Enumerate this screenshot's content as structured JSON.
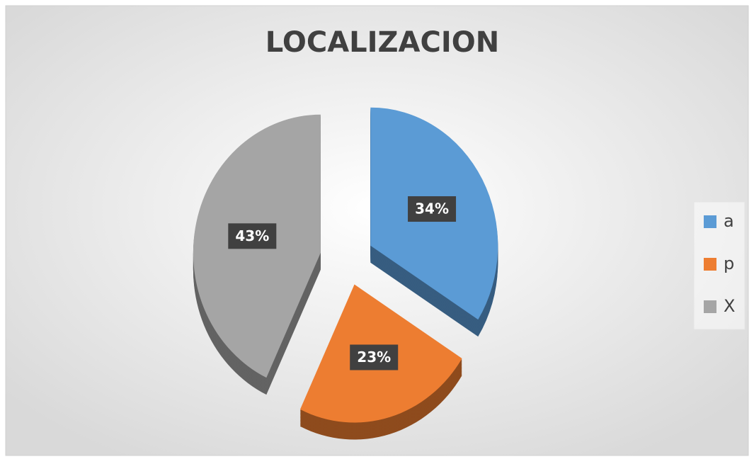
{
  "chart_data": {
    "type": "pie",
    "title": "LOCALIZACION",
    "categories": [
      "a",
      "p",
      "X"
    ],
    "values": [
      34,
      23,
      43
    ],
    "value_labels": [
      "34%",
      "23%",
      "43%"
    ],
    "colors": [
      "#5b9bd5",
      "#ed7d31",
      "#a5a5a5"
    ],
    "legend": "right"
  }
}
